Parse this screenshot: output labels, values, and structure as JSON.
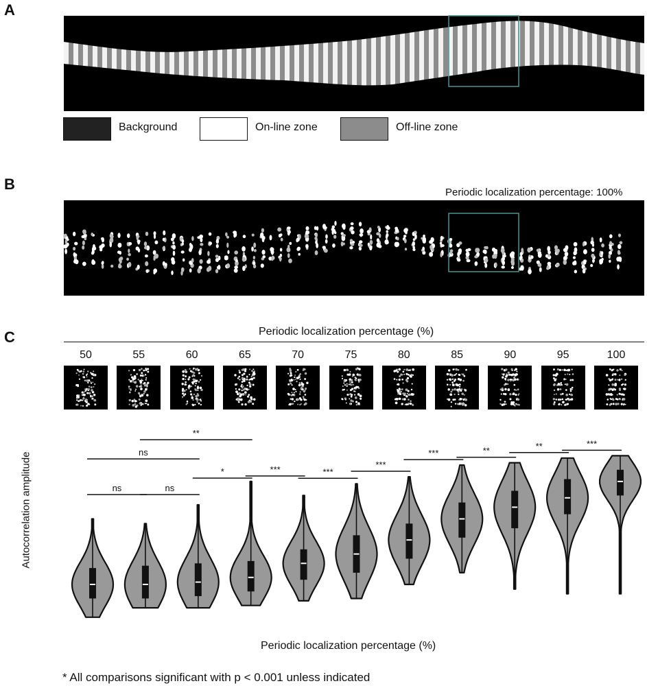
{
  "panels": {
    "a": {
      "letter": "A",
      "legend": [
        {
          "label": "Background",
          "fill": "#222222"
        },
        {
          "label": "On-line zone",
          "fill": "#ffffff"
        },
        {
          "label": "Off-line zone",
          "fill": "#8c8c8c"
        }
      ]
    },
    "b": {
      "letter": "B",
      "caption": "Periodic localization percentage: 100%"
    },
    "c": {
      "letter": "C",
      "top_label": "Periodic localization percentage (%)",
      "footnote": "* All comparisons significant with p < 0.001 unless indicated"
    }
  },
  "colors": {
    "violin_fill": "#999999",
    "roi_box": "#4a8a8a",
    "background": "#000000"
  },
  "chart_data": {
    "type": "violin",
    "xlabel": "Periodic localization percentage (%)",
    "ylabel": "Autocorrelation amplitude",
    "categories": [
      "50",
      "55",
      "60",
      "65",
      "70",
      "75",
      "80",
      "85",
      "90",
      "95",
      "100"
    ],
    "medians": [
      0.12,
      0.12,
      0.13,
      0.15,
      0.21,
      0.25,
      0.31,
      0.4,
      0.45,
      0.49,
      0.56
    ],
    "q1": [
      0.06,
      0.06,
      0.07,
      0.09,
      0.14,
      0.17,
      0.23,
      0.32,
      0.36,
      0.42,
      0.5
    ],
    "q3": [
      0.19,
      0.2,
      0.21,
      0.22,
      0.27,
      0.33,
      0.38,
      0.47,
      0.52,
      0.57,
      0.61
    ],
    "mins": [
      -0.02,
      0.02,
      0.02,
      0.03,
      0.05,
      0.06,
      0.12,
      0.17,
      0.1,
      0.08,
      0.08
    ],
    "maxs": [
      0.4,
      0.38,
      0.46,
      0.56,
      0.5,
      0.55,
      0.58,
      0.63,
      0.64,
      0.66,
      0.67
    ],
    "ylim": [
      -0.05,
      0.8
    ],
    "comparisons": [
      {
        "from": 0,
        "to": 1,
        "label": "ns",
        "level": 0
      },
      {
        "from": 1,
        "to": 2,
        "label": "ns",
        "level": 0
      },
      {
        "from": 2,
        "to": 3,
        "label": "*",
        "level": 0
      },
      {
        "from": 3,
        "to": 4,
        "label": "***",
        "level": 0
      },
      {
        "from": 4,
        "to": 5,
        "label": "***",
        "level": 0
      },
      {
        "from": 5,
        "to": 6,
        "label": "***",
        "level": 0
      },
      {
        "from": 6,
        "to": 7,
        "label": "***",
        "level": 0
      },
      {
        "from": 7,
        "to": 8,
        "label": "**",
        "level": 0
      },
      {
        "from": 8,
        "to": 9,
        "label": "**",
        "level": 0
      },
      {
        "from": 9,
        "to": 10,
        "label": "***",
        "level": 0
      },
      {
        "from": 0,
        "to": 2,
        "label": "ns",
        "level": 1
      },
      {
        "from": 1,
        "to": 3,
        "label": "**",
        "level": 2
      }
    ]
  }
}
